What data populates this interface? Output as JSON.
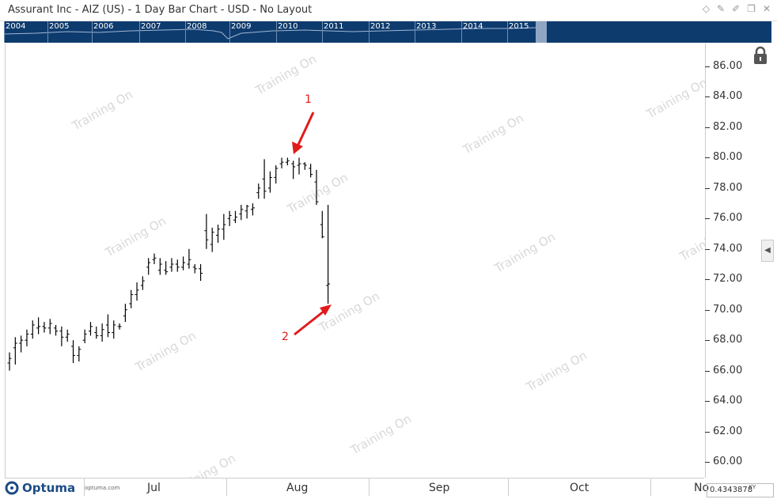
{
  "window": {
    "title": "Assurant Inc - AIZ (US) - 1 Day Bar Chart - USD - No Layout"
  },
  "overview": {
    "years": [
      "2004",
      "2005",
      "2006",
      "2007",
      "2008",
      "2009",
      "2010",
      "2011",
      "2012",
      "2013",
      "2014",
      "2015"
    ]
  },
  "watermark": "Training On",
  "annotations": [
    {
      "label": "1"
    },
    {
      "label": "2"
    }
  ],
  "branding": {
    "name": "Optuma",
    "url": "optuma.com"
  },
  "readout": {
    "value": "0.4343878",
    "mode": "XY"
  },
  "chart_data": {
    "type": "bar",
    "subtype": "ohlc",
    "ylim": [
      59,
      87
    ],
    "y_ticks": [
      "60.00",
      "62.00",
      "64.00",
      "66.00",
      "68.00",
      "70.00",
      "72.00",
      "74.00",
      "76.00",
      "78.00",
      "80.00",
      "82.00",
      "84.00",
      "86.00"
    ],
    "x_ticks": [
      "Jul",
      "Aug",
      "Sep",
      "Oct",
      "No"
    ],
    "grid": false,
    "bars": [
      {
        "o": 66.5,
        "h": 67.2,
        "l": 66.0,
        "c": 66.8
      },
      {
        "o": 67.5,
        "h": 68.2,
        "l": 66.4,
        "c": 67.8
      },
      {
        "o": 67.8,
        "h": 68.3,
        "l": 67.2,
        "c": 68.0
      },
      {
        "o": 68.0,
        "h": 68.7,
        "l": 67.6,
        "c": 68.4
      },
      {
        "o": 68.4,
        "h": 69.3,
        "l": 68.1,
        "c": 69.0
      },
      {
        "o": 68.8,
        "h": 69.5,
        "l": 68.4,
        "c": 68.9
      },
      {
        "o": 68.9,
        "h": 69.2,
        "l": 68.5,
        "c": 68.8
      },
      {
        "o": 68.8,
        "h": 69.4,
        "l": 68.4,
        "c": 69.1
      },
      {
        "o": 68.8,
        "h": 69.0,
        "l": 68.3,
        "c": 68.6
      },
      {
        "o": 68.6,
        "h": 68.9,
        "l": 67.6,
        "c": 68.2
      },
      {
        "o": 68.2,
        "h": 68.7,
        "l": 67.9,
        "c": 68.4
      },
      {
        "o": 67.6,
        "h": 68.0,
        "l": 66.5,
        "c": 67.0
      },
      {
        "o": 67.0,
        "h": 67.6,
        "l": 66.6,
        "c": 67.4
      },
      {
        "o": 68.0,
        "h": 68.7,
        "l": 67.8,
        "c": 68.4
      },
      {
        "o": 68.6,
        "h": 69.2,
        "l": 68.3,
        "c": 68.9
      },
      {
        "o": 68.5,
        "h": 68.9,
        "l": 68.1,
        "c": 68.3
      },
      {
        "o": 68.3,
        "h": 69.1,
        "l": 67.9,
        "c": 68.7
      },
      {
        "o": 69.0,
        "h": 69.7,
        "l": 68.2,
        "c": 68.5
      },
      {
        "o": 68.5,
        "h": 69.3,
        "l": 68.1,
        "c": 69.0
      },
      {
        "o": 68.9,
        "h": 69.1,
        "l": 68.7,
        "c": 68.9
      },
      {
        "o": 69.6,
        "h": 70.4,
        "l": 69.2,
        "c": 70.0
      },
      {
        "o": 70.4,
        "h": 71.3,
        "l": 70.1,
        "c": 71.0
      },
      {
        "o": 71.0,
        "h": 71.8,
        "l": 70.6,
        "c": 71.3
      },
      {
        "o": 71.6,
        "h": 72.2,
        "l": 71.3,
        "c": 71.9
      },
      {
        "o": 72.8,
        "h": 73.4,
        "l": 72.3,
        "c": 73.1
      },
      {
        "o": 73.3,
        "h": 73.7,
        "l": 73.0,
        "c": 73.4
      },
      {
        "o": 72.6,
        "h": 73.4,
        "l": 72.3,
        "c": 73.0
      },
      {
        "o": 72.6,
        "h": 73.2,
        "l": 72.3,
        "c": 72.5
      },
      {
        "o": 72.8,
        "h": 73.4,
        "l": 72.5,
        "c": 73.0
      },
      {
        "o": 73.0,
        "h": 73.3,
        "l": 72.5,
        "c": 72.8
      },
      {
        "o": 72.8,
        "h": 73.5,
        "l": 72.6,
        "c": 73.1
      },
      {
        "o": 73.0,
        "h": 74.0,
        "l": 72.7,
        "c": 73.3
      },
      {
        "o": 72.8,
        "h": 73.0,
        "l": 72.4,
        "c": 72.7
      },
      {
        "o": 72.7,
        "h": 73.0,
        "l": 71.9,
        "c": 72.4
      },
      {
        "o": 75.2,
        "h": 76.3,
        "l": 74.0,
        "c": 74.6
      },
      {
        "o": 74.3,
        "h": 75.4,
        "l": 73.8,
        "c": 75.1
      },
      {
        "o": 74.9,
        "h": 75.6,
        "l": 74.4,
        "c": 75.3
      },
      {
        "o": 75.3,
        "h": 76.3,
        "l": 74.6,
        "c": 75.6
      },
      {
        "o": 76.0,
        "h": 76.5,
        "l": 75.5,
        "c": 76.2
      },
      {
        "o": 75.9,
        "h": 76.5,
        "l": 75.7,
        "c": 76.1
      },
      {
        "o": 76.3,
        "h": 76.9,
        "l": 75.9,
        "c": 76.6
      },
      {
        "o": 76.5,
        "h": 76.9,
        "l": 76.0,
        "c": 76.8
      },
      {
        "o": 76.6,
        "h": 77.0,
        "l": 76.2,
        "c": 76.7
      },
      {
        "o": 77.7,
        "h": 78.3,
        "l": 77.3,
        "c": 78.0
      },
      {
        "o": 78.6,
        "h": 79.9,
        "l": 77.3,
        "c": 77.8
      },
      {
        "o": 78.0,
        "h": 79.1,
        "l": 77.7,
        "c": 78.7
      },
      {
        "o": 78.7,
        "h": 79.5,
        "l": 78.3,
        "c": 79.3
      },
      {
        "o": 79.6,
        "h": 80.0,
        "l": 79.3,
        "c": 79.7
      },
      {
        "o": 79.7,
        "h": 80.0,
        "l": 79.5,
        "c": 79.8
      },
      {
        "o": 79.6,
        "h": 79.8,
        "l": 78.6,
        "c": 79.4
      },
      {
        "o": 79.5,
        "h": 80.0,
        "l": 78.9,
        "c": 79.6
      },
      {
        "o": 79.6,
        "h": 79.7,
        "l": 79.2,
        "c": 79.5
      },
      {
        "o": 79.3,
        "h": 79.6,
        "l": 78.7,
        "c": 78.9
      },
      {
        "o": 78.4,
        "h": 79.2,
        "l": 76.9,
        "c": 77.1
      },
      {
        "o": 75.6,
        "h": 76.5,
        "l": 74.7,
        "c": 74.8
      },
      {
        "o": 71.6,
        "h": 76.9,
        "l": 70.4,
        "c": 71.7
      }
    ]
  }
}
